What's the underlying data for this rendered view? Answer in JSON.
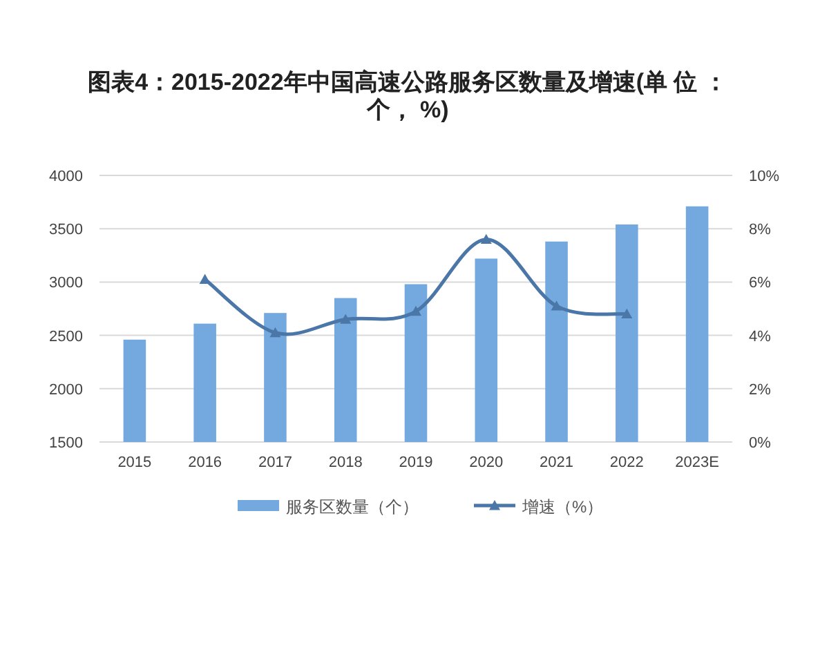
{
  "chart_data": {
    "type": "bar",
    "title": "图表4：2015-2022年中国高速公路服务区数量及增速(单 位 ：个， %)",
    "categories": [
      "2015",
      "2016",
      "2017",
      "2018",
      "2019",
      "2020",
      "2021",
      "2022",
      "2023E"
    ],
    "series": [
      {
        "name": "服务区数量（个）",
        "color": "#74a9e0",
        "values": [
          2460,
          2610,
          2710,
          2850,
          2980,
          3220,
          3380,
          3540,
          3710
        ]
      },
      {
        "name": "增速（%）",
        "type": "line",
        "axis": "y2",
        "color": "#4a77a8",
        "marker": "triangle",
        "values": [
          null,
          6.1,
          4.1,
          4.6,
          4.9,
          7.6,
          5.1,
          4.8,
          null
        ]
      }
    ],
    "ylim": [
      1500,
      4000
    ],
    "yticks": [
      1500,
      2000,
      2500,
      3000,
      3500,
      4000
    ],
    "y2lim": [
      0,
      10
    ],
    "y2ticks": [
      {
        "value": 0,
        "label": "0%"
      },
      {
        "value": 2,
        "label": "2%"
      },
      {
        "value": 4,
        "label": "4%"
      },
      {
        "value": 6,
        "label": "6%"
      },
      {
        "value": 8,
        "label": "8%"
      },
      {
        "value": 10,
        "label": "10%"
      }
    ],
    "grid": "y",
    "legend": "bottom"
  }
}
